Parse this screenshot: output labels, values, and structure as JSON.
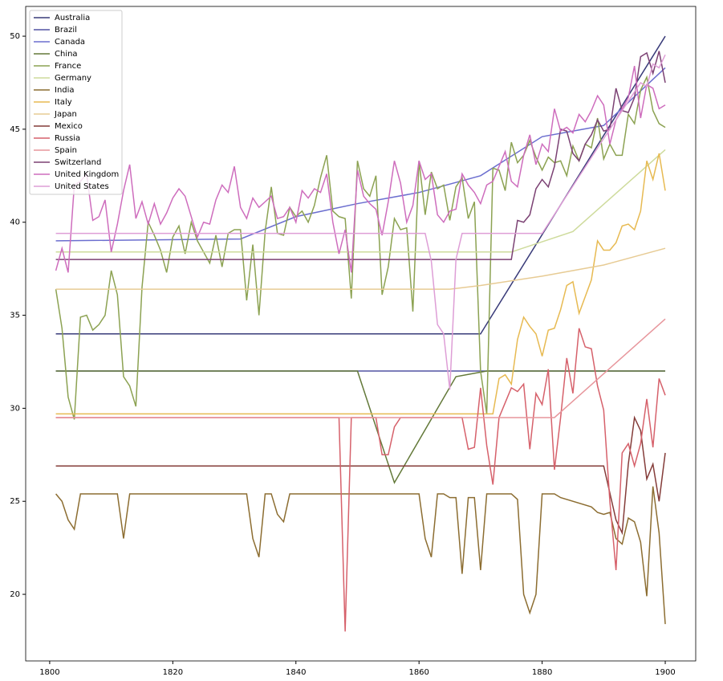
{
  "chart_data": {
    "type": "line",
    "xlim": [
      1796.1,
      1904.95
    ],
    "ylim": [
      16.42,
      51.6
    ],
    "xticks": [
      1800,
      1820,
      1840,
      1860,
      1880,
      1900
    ],
    "yticks": [
      20,
      25,
      30,
      35,
      40,
      45,
      50
    ],
    "grid": false,
    "legend": "upper left",
    "x": [
      1801,
      1802,
      1803,
      1804,
      1805,
      1806,
      1807,
      1808,
      1809,
      1810,
      1811,
      1812,
      1813,
      1814,
      1815,
      1816,
      1817,
      1818,
      1819,
      1820,
      1821,
      1822,
      1823,
      1824,
      1825,
      1826,
      1827,
      1828,
      1829,
      1830,
      1831,
      1832,
      1833,
      1834,
      1835,
      1836,
      1837,
      1838,
      1839,
      1840,
      1841,
      1842,
      1843,
      1844,
      1845,
      1846,
      1847,
      1848,
      1849,
      1850,
      1851,
      1852,
      1853,
      1854,
      1855,
      1856,
      1857,
      1858,
      1859,
      1860,
      1861,
      1862,
      1863,
      1864,
      1865,
      1866,
      1867,
      1868,
      1869,
      1870,
      1871,
      1872,
      1873,
      1874,
      1875,
      1876,
      1877,
      1878,
      1879,
      1880,
      1881,
      1882,
      1883,
      1884,
      1885,
      1886,
      1887,
      1888,
      1889,
      1890,
      1891,
      1892,
      1893,
      1894,
      1895,
      1896,
      1897,
      1898,
      1899,
      1900
    ],
    "series": [
      {
        "name": "Australia",
        "color": "#393b79",
        "x": [
          1801,
          1870,
          1900
        ],
        "values": [
          34.0,
          34.0,
          50.0
        ]
      },
      {
        "name": "Brazil",
        "color": "#5254a3",
        "x": [
          1801,
          1900
        ],
        "values": [
          32.0,
          32.0
        ]
      },
      {
        "name": "Canada",
        "color": "#6b6ecf",
        "x": [
          1801,
          1831,
          1840,
          1850,
          1860,
          1870,
          1880,
          1890,
          1900
        ],
        "values": [
          39.0,
          39.1,
          40.3,
          41.0,
          41.6,
          42.5,
          44.6,
          45.2,
          48.3
        ]
      },
      {
        "name": "China",
        "color": "#637939",
        "x": [
          1801,
          1850,
          1856,
          1866,
          1871,
          1900
        ],
        "values": [
          32.0,
          32.0,
          26.0,
          31.7,
          32.0,
          32.0
        ]
      },
      {
        "name": "France",
        "color": "#8ca252",
        "values": [
          36.4,
          34.3,
          30.6,
          29.4,
          34.9,
          35.0,
          34.2,
          34.5,
          35.0,
          37.4,
          36.1,
          31.7,
          31.2,
          30.1,
          36.5,
          40.0,
          39.3,
          38.5,
          37.3,
          39.2,
          39.8,
          38.3,
          40.0,
          39.0,
          38.4,
          37.8,
          39.3,
          37.6,
          39.4,
          39.6,
          39.6,
          35.8,
          38.8,
          35.0,
          39.5,
          41.9,
          39.4,
          39.3,
          40.8,
          40.3,
          40.6,
          40.0,
          40.9,
          42.4,
          43.6,
          40.6,
          40.3,
          40.2,
          35.9,
          43.3,
          41.8,
          41.4,
          42.5,
          36.1,
          37.6,
          40.2,
          39.6,
          39.7,
          35.2,
          43.3,
          40.4,
          42.7,
          41.8,
          42.0,
          40.1,
          41.9,
          42.4,
          40.2,
          41.1,
          32.0,
          29.7,
          42.9,
          42.8,
          41.7,
          44.3,
          43.2,
          43.6,
          44.4,
          43.5,
          42.8,
          43.5,
          43.2,
          43.3,
          42.5,
          44.1,
          43.3,
          44.2,
          44.0,
          45.6,
          43.4,
          44.2,
          43.6,
          43.6,
          45.8,
          45.3,
          47.1,
          47.8,
          46.0,
          45.3,
          45.1
        ]
      },
      {
        "name": "Germany",
        "color": "#cedb9c",
        "x": [
          1801,
          1875,
          1885,
          1900
        ],
        "values": [
          38.4,
          38.4,
          39.5,
          43.9
        ]
      },
      {
        "name": "India",
        "color": "#8c6d31",
        "x": [
          1801,
          1802,
          1803,
          1804,
          1805,
          1811,
          1812,
          1813,
          1832,
          1833,
          1834,
          1835,
          1836,
          1837,
          1838,
          1839,
          1860,
          1861,
          1862,
          1863,
          1864,
          1865,
          1866,
          1867,
          1868,
          1869,
          1870,
          1871,
          1875,
          1876,
          1877,
          1878,
          1879,
          1880,
          1882,
          1883,
          1888,
          1889,
          1890,
          1891,
          1892,
          1893,
          1894,
          1895,
          1896,
          1897,
          1898,
          1899,
          1900
        ],
        "values": [
          25.4,
          25.0,
          24.0,
          23.5,
          25.4,
          25.4,
          23.0,
          25.4,
          25.4,
          23.0,
          22.0,
          25.4,
          25.4,
          24.3,
          23.9,
          25.4,
          25.4,
          23.0,
          22.0,
          25.4,
          25.4,
          25.2,
          25.2,
          21.1,
          25.2,
          25.2,
          21.3,
          25.4,
          25.4,
          25.1,
          20.0,
          19.0,
          20.0,
          25.4,
          25.4,
          25.2,
          24.7,
          24.4,
          24.3,
          24.4,
          23.0,
          22.7,
          24.1,
          23.9,
          22.8,
          19.9,
          25.8,
          23.3,
          18.4
        ]
      },
      {
        "name": "Italy",
        "color": "#e7ba52",
        "x": [
          1801,
          1872,
          1873,
          1874,
          1875,
          1876,
          1877,
          1878,
          1879,
          1880,
          1881,
          1882,
          1883,
          1884,
          1885,
          1886,
          1887,
          1888,
          1889,
          1890,
          1891,
          1892,
          1893,
          1894,
          1895,
          1896,
          1897,
          1898,
          1899,
          1900
        ],
        "values": [
          29.7,
          29.7,
          31.6,
          31.8,
          31.3,
          33.7,
          34.9,
          34.4,
          34.0,
          32.8,
          34.2,
          34.3,
          35.3,
          36.6,
          36.8,
          35.1,
          36.0,
          36.9,
          39.0,
          38.5,
          38.5,
          38.9,
          39.8,
          39.9,
          39.6,
          40.6,
          43.3,
          42.3,
          43.7,
          41.7
        ]
      },
      {
        "name": "Japan",
        "color": "#e7cb94",
        "x": [
          1801,
          1865,
          1870,
          1880,
          1890,
          1900
        ],
        "values": [
          36.4,
          36.4,
          36.6,
          37.1,
          37.7,
          38.6
        ]
      },
      {
        "name": "Mexico",
        "color": "#843c39",
        "x": [
          1801,
          1890,
          1892,
          1893,
          1894,
          1895,
          1896,
          1897,
          1898,
          1899,
          1900
        ],
        "values": [
          26.9,
          26.9,
          24.0,
          23.3,
          27.0,
          29.5,
          28.8,
          26.2,
          27.0,
          25.0,
          27.6
        ]
      },
      {
        "name": "Russia",
        "color": "#d6616b",
        "x": [
          1801,
          1847,
          1848,
          1849,
          1853,
          1854,
          1855,
          1856,
          1857,
          1867,
          1868,
          1869,
          1870,
          1871,
          1872,
          1873,
          1874,
          1875,
          1876,
          1877,
          1878,
          1879,
          1880,
          1881,
          1882,
          1883,
          1884,
          1885,
          1886,
          1887,
          1888,
          1889,
          1890,
          1891,
          1892,
          1893,
          1894,
          1895,
          1896,
          1897,
          1898,
          1899,
          1900
        ],
        "values": [
          29.5,
          29.5,
          18.0,
          29.5,
          29.5,
          27.5,
          27.5,
          29.0,
          29.5,
          29.5,
          27.8,
          27.9,
          31.1,
          28.0,
          25.9,
          29.5,
          30.3,
          31.1,
          30.9,
          31.3,
          27.8,
          30.8,
          30.2,
          32.1,
          26.7,
          29.5,
          32.7,
          30.8,
          34.3,
          33.3,
          33.2,
          31.2,
          29.9,
          25.0,
          21.3,
          27.6,
          28.1,
          26.9,
          28.1,
          30.5,
          27.9,
          31.6,
          30.7
        ]
      },
      {
        "name": "Spain",
        "color": "#e7969c",
        "x": [
          1801,
          1882,
          1900
        ],
        "values": [
          29.5,
          29.5,
          34.8
        ]
      },
      {
        "name": "Switzerland",
        "color": "#7b4173",
        "x": [
          1801,
          1875,
          1876,
          1877,
          1878,
          1879,
          1880,
          1881,
          1882,
          1883,
          1884,
          1885,
          1886,
          1887,
          1888,
          1889,
          1890,
          1891,
          1892,
          1893,
          1894,
          1895,
          1896,
          1897,
          1898,
          1899,
          1900
        ],
        "values": [
          38.0,
          38.0,
          40.1,
          40.0,
          40.4,
          41.8,
          42.3,
          41.9,
          43.0,
          45.0,
          44.9,
          43.7,
          43.3,
          44.2,
          44.7,
          45.5,
          44.9,
          45.0,
          47.2,
          46.0,
          45.9,
          46.7,
          48.9,
          49.1,
          48.0,
          49.2,
          47.5
        ]
      },
      {
        "name": "United Kingdom",
        "color": "#ce6dbd",
        "values": [
          37.4,
          38.6,
          37.3,
          42.0,
          42.2,
          42.6,
          40.1,
          40.3,
          41.2,
          38.4,
          39.9,
          41.7,
          43.1,
          40.2,
          41.1,
          39.9,
          41.0,
          39.9,
          40.5,
          41.3,
          41.8,
          41.4,
          40.3,
          39.2,
          40.0,
          39.9,
          41.2,
          42.0,
          41.6,
          43.0,
          40.8,
          40.2,
          41.3,
          40.8,
          41.1,
          41.4,
          40.2,
          40.3,
          40.8,
          40.0,
          41.7,
          41.3,
          41.8,
          41.6,
          42.6,
          40.0,
          38.3,
          39.6,
          37.3,
          42.8,
          41.4,
          41.0,
          40.7,
          39.3,
          41.1,
          43.3,
          42.1,
          40.0,
          40.9,
          43.3,
          42.3,
          42.6,
          40.4,
          40.0,
          40.6,
          40.7,
          42.6,
          42.0,
          41.6,
          41.0,
          42.0,
          42.2,
          43.0,
          43.8,
          42.2,
          41.9,
          43.6,
          44.7,
          43.1,
          44.2,
          43.8,
          46.1,
          44.9,
          45.1,
          44.8,
          45.8,
          45.4,
          46.0,
          46.8,
          46.3,
          44.2,
          45.5,
          46.1,
          46.7,
          48.4,
          45.6,
          47.4,
          47.2,
          46.1,
          46.3
        ]
      },
      {
        "name": "United States",
        "color": "#de9ed6",
        "x": [
          1801,
          1861,
          1862,
          1863,
          1864,
          1865,
          1866,
          1867,
          1880,
          1890,
          1895,
          1896,
          1897,
          1898,
          1899,
          1900
        ],
        "values": [
          39.4,
          39.4,
          37.9,
          34.5,
          34.0,
          31.0,
          38.0,
          39.4,
          39.4,
          44.5,
          47.0,
          47.5,
          47.3,
          48.5,
          48.3,
          49.0
        ]
      }
    ]
  }
}
